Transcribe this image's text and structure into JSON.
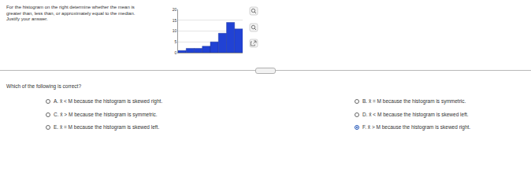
{
  "question": {
    "lines": [
      "For the histogram on the right determine whether the mean is",
      "greater than, less than, or approximately equal to the median.",
      "Justify your answer."
    ]
  },
  "chart_data": {
    "type": "histogram",
    "bins": [
      0,
      1,
      2,
      3,
      4,
      5,
      6,
      7,
      8
    ],
    "values": [
      1,
      2,
      2,
      3,
      5,
      9,
      14,
      11
    ],
    "color": "#2142d4",
    "ylim": [
      0,
      20
    ],
    "yticks": [
      0,
      5,
      10,
      15,
      20
    ],
    "grid": true,
    "tick_labels": "y"
  },
  "prompt": "Which of the following is correct?",
  "options": [
    {
      "letter": "A.",
      "text": "x̄ < M because the histogram is skewed right.",
      "selected": false
    },
    {
      "letter": "B.",
      "text": "x̄ = M because the histogram is symmetric.",
      "selected": false
    },
    {
      "letter": "C.",
      "text": "x̄ > M because the histogram is symmetric.",
      "selected": false
    },
    {
      "letter": "D.",
      "text": "x̄ < M because the histogram is skewed left.",
      "selected": false
    },
    {
      "letter": "E.",
      "text": "x̄ = M because the histogram is skewed left.",
      "selected": false
    },
    {
      "letter": "F.",
      "text": "x̄ > M because the histogram is skewed right.",
      "selected": true
    }
  ]
}
